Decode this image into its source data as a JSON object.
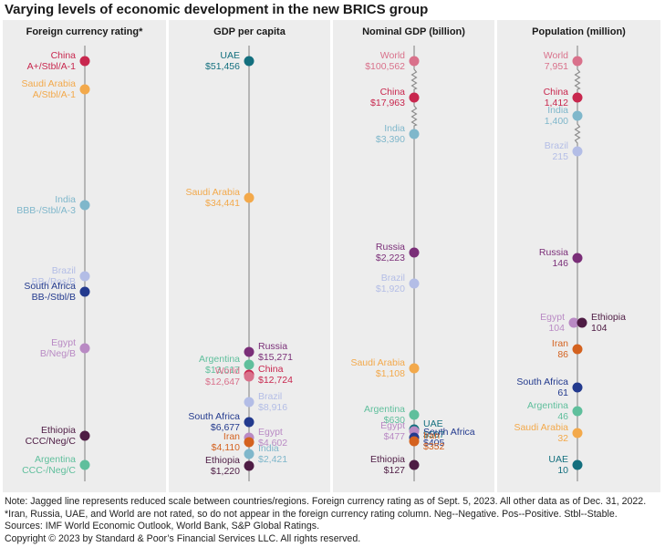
{
  "title": "Varying levels of economic development in the new BRICS group",
  "chart_data": [
    {
      "type": "dot-scale",
      "title": "Foreign currency rating*",
      "items": [
        {
          "name": "China",
          "value": "A+/Stbl/A-1",
          "color": "#c8274e",
          "side": "left"
        },
        {
          "name": "Saudi Arabia",
          "value": "A/Stbl/A-1",
          "color": "#f3a94b",
          "side": "left"
        },
        {
          "name": "India",
          "value": "BBB-/Stbl/A-3",
          "color": "#7fb7cb",
          "side": "left"
        },
        {
          "name": "Brazil",
          "value": "BB-/Pos/B",
          "color": "#b3bde6",
          "side": "left"
        },
        {
          "name": "South Africa",
          "value": "BB-/Stbl/B",
          "color": "#233a8e",
          "side": "left"
        },
        {
          "name": "Egypt",
          "value": "B/Neg/B",
          "color": "#b98ac4",
          "side": "left"
        },
        {
          "name": "Ethiopia",
          "value": "CCC/Neg/C",
          "color": "#4e1c44",
          "side": "left"
        },
        {
          "name": "Argentina",
          "value": "CCC-/Neg/C",
          "color": "#5fbf9c",
          "side": "left"
        }
      ]
    },
    {
      "type": "dot-scale",
      "title": "GDP per capita",
      "unit": "USD",
      "items": [
        {
          "name": "UAE",
          "value": "$51,456",
          "num": 51456,
          "color": "#136f7e",
          "side": "left"
        },
        {
          "name": "Saudi Arabia",
          "value": "$34,441",
          "num": 34441,
          "color": "#f3a94b",
          "side": "left"
        },
        {
          "name": "Russia",
          "value": "$15,271",
          "num": 15271,
          "color": "#7a2e78",
          "side": "right"
        },
        {
          "name": "Argentina",
          "value": "$13,617",
          "num": 13617,
          "color": "#5fbf9c",
          "side": "left"
        },
        {
          "name": "China",
          "value": "$12,724",
          "num": 12724,
          "color": "#c8274e",
          "side": "right"
        },
        {
          "name": "World",
          "value": "$12,647",
          "num": 12647,
          "color": "#d9718b",
          "side": "left"
        },
        {
          "name": "Brazil",
          "value": "$8,916",
          "num": 8916,
          "color": "#b3bde6",
          "side": "right"
        },
        {
          "name": "South Africa",
          "value": "$6,677",
          "num": 6677,
          "color": "#233a8e",
          "side": "left"
        },
        {
          "name": "Egypt",
          "value": "$4,602",
          "num": 4602,
          "color": "#b98ac4",
          "side": "right"
        },
        {
          "name": "Iran",
          "value": "$4,110",
          "num": 4110,
          "color": "#d4621f",
          "side": "left"
        },
        {
          "name": "India",
          "value": "$2,421",
          "num": 2421,
          "color": "#7fb7cb",
          "side": "right"
        },
        {
          "name": "Ethiopia",
          "value": "$1,220",
          "num": 1220,
          "color": "#4e1c44",
          "side": "left"
        }
      ]
    },
    {
      "type": "dot-scale",
      "title": "Nominal GDP (billion)",
      "unit": "USD billion",
      "items": [
        {
          "name": "World",
          "value": "$100,562",
          "num": 100562,
          "color": "#d9718b",
          "side": "left"
        },
        {
          "name": "China",
          "value": "$17,963",
          "num": 17963,
          "color": "#c8274e",
          "side": "left"
        },
        {
          "name": "India",
          "value": "$3,390",
          "num": 3390,
          "color": "#7fb7cb",
          "side": "left"
        },
        {
          "name": "Russia",
          "value": "$2,223",
          "num": 2223,
          "color": "#7a2e78",
          "side": "left"
        },
        {
          "name": "Brazil",
          "value": "$1,920",
          "num": 1920,
          "color": "#b3bde6",
          "side": "left"
        },
        {
          "name": "Saudi Arabia",
          "value": "$1,108",
          "num": 1108,
          "color": "#f3a94b",
          "side": "left"
        },
        {
          "name": "Argentina",
          "value": "$630",
          "num": 630,
          "color": "#5fbf9c",
          "side": "left"
        },
        {
          "name": "UAE",
          "value": "$507",
          "num": 507,
          "color": "#136f7e",
          "side": "right"
        },
        {
          "name": "Egypt",
          "value": "$477",
          "num": 477,
          "color": "#b98ac4",
          "side": "left"
        },
        {
          "name": "South Africa",
          "value": "$405",
          "num": 405,
          "color": "#233a8e",
          "side": "right"
        },
        {
          "name": "Iran",
          "value": "$352",
          "num": 352,
          "color": "#d4621f",
          "side": "right"
        },
        {
          "name": "Ethiopia",
          "value": "$127",
          "num": 127,
          "color": "#4e1c44",
          "side": "left"
        }
      ],
      "breaks": [
        [
          0,
          1
        ],
        [
          1,
          2
        ]
      ]
    },
    {
      "type": "dot-scale",
      "title": "Population (million)",
      "unit": "million",
      "items": [
        {
          "name": "World",
          "value": "7,951",
          "num": 7951,
          "color": "#d9718b",
          "side": "left"
        },
        {
          "name": "China",
          "value": "1,412",
          "num": 1412,
          "color": "#c8274e",
          "side": "left"
        },
        {
          "name": "India",
          "value": "1,400",
          "num": 1400,
          "color": "#7fb7cb",
          "side": "left"
        },
        {
          "name": "Brazil",
          "value": "215",
          "num": 215,
          "color": "#b3bde6",
          "side": "left"
        },
        {
          "name": "Russia",
          "value": "146",
          "num": 146,
          "color": "#7a2e78",
          "side": "left"
        },
        {
          "name": "Egypt",
          "value": "104",
          "num": 104,
          "color": "#b98ac4",
          "side": "left"
        },
        {
          "name": "Ethiopia",
          "value": "104",
          "num": 104,
          "color": "#4e1c44",
          "side": "right"
        },
        {
          "name": "Iran",
          "value": "86",
          "num": 86,
          "color": "#d4621f",
          "side": "left"
        },
        {
          "name": "South Africa",
          "value": "61",
          "num": 61,
          "color": "#233a8e",
          "side": "left"
        },
        {
          "name": "Argentina",
          "value": "46",
          "num": 46,
          "color": "#5fbf9c",
          "side": "left"
        },
        {
          "name": "Saudi Arabia",
          "value": "32",
          "num": 32,
          "color": "#f3a94b",
          "side": "left"
        },
        {
          "name": "UAE",
          "value": "10",
          "num": 10,
          "color": "#136f7e",
          "side": "left"
        }
      ],
      "breaks": [
        [
          0,
          1
        ],
        [
          2,
          3
        ]
      ]
    }
  ],
  "notes": [
    "Note: Jagged line represents reduced scale between countries/regions. Foreign currency rating as of Sept. 5, 2023. All other data as of Dec. 31, 2022.",
    "*Iran, Russia, UAE, and World are not rated, so do not appear in the foreign currency rating column. Neg--Negative. Pos--Positive. Stbl--Stable.",
    "Sources: IMF World Economic Outlook, World Bank, S&P Global Ratings.",
    "Copyright © 2023 by Standard & Poor’s Financial Services LLC. All rights reserved."
  ]
}
